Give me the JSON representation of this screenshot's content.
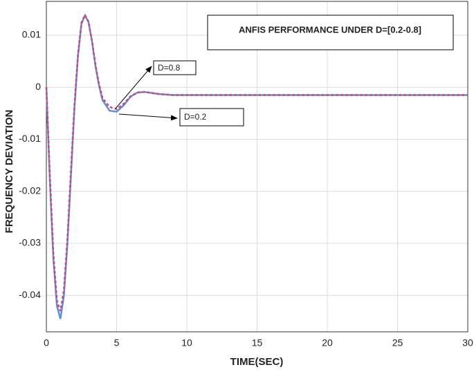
{
  "chart_data": {
    "type": "line",
    "title": "ANFIS PERFORMANCE UNDER D=[0.2-0.8]",
    "x_label": "TIME(SEC)",
    "y_label": "FREQUENCY  DEVIATION",
    "x": [
      0,
      0.25,
      0.5,
      0.75,
      1,
      1.25,
      1.5,
      1.75,
      2,
      2.25,
      2.5,
      2.75,
      3,
      3.25,
      3.5,
      3.75,
      4,
      4.5,
      5,
      5.5,
      6,
      6.5,
      7,
      7.5,
      8,
      9,
      10,
      15,
      20,
      25,
      30
    ],
    "series": [
      {
        "name": "D=0.2",
        "color": "#5b8fd6",
        "values": [
          0,
          -0.018,
          -0.033,
          -0.042,
          -0.0445,
          -0.04,
          -0.03,
          -0.017,
          -0.004,
          0.006,
          0.0122,
          0.0138,
          0.0125,
          0.0088,
          0.004,
          0.0003,
          -0.0025,
          -0.0045,
          -0.0047,
          -0.0035,
          -0.0018,
          -0.001,
          -0.0009,
          -0.0011,
          -0.0013,
          -0.0015,
          -0.0015,
          -0.0015,
          -0.0015,
          -0.0015,
          -0.0015
        ]
      },
      {
        "name": "D=0.8",
        "color": "#d0457a",
        "values": [
          0,
          -0.017,
          -0.032,
          -0.041,
          -0.043,
          -0.039,
          -0.029,
          -0.016,
          -0.0035,
          0.0063,
          0.0124,
          0.0139,
          0.0126,
          0.0089,
          0.0042,
          0.0006,
          -0.0021,
          -0.0038,
          -0.0042,
          -0.0032,
          -0.0017,
          -0.001,
          -0.0009,
          -0.0011,
          -0.0013,
          -0.0015,
          -0.0015,
          -0.0015,
          -0.0015,
          -0.0015,
          -0.0015
        ]
      }
    ],
    "xlim": [
      0,
      30
    ],
    "xticks": [
      0,
      5,
      10,
      15,
      20,
      25,
      30
    ],
    "ylim": [
      -0.047,
      0.0165
    ],
    "yticks": [
      0.01,
      0,
      -0.01,
      -0.02,
      -0.03,
      -0.04
    ],
    "grid": true
  }
}
